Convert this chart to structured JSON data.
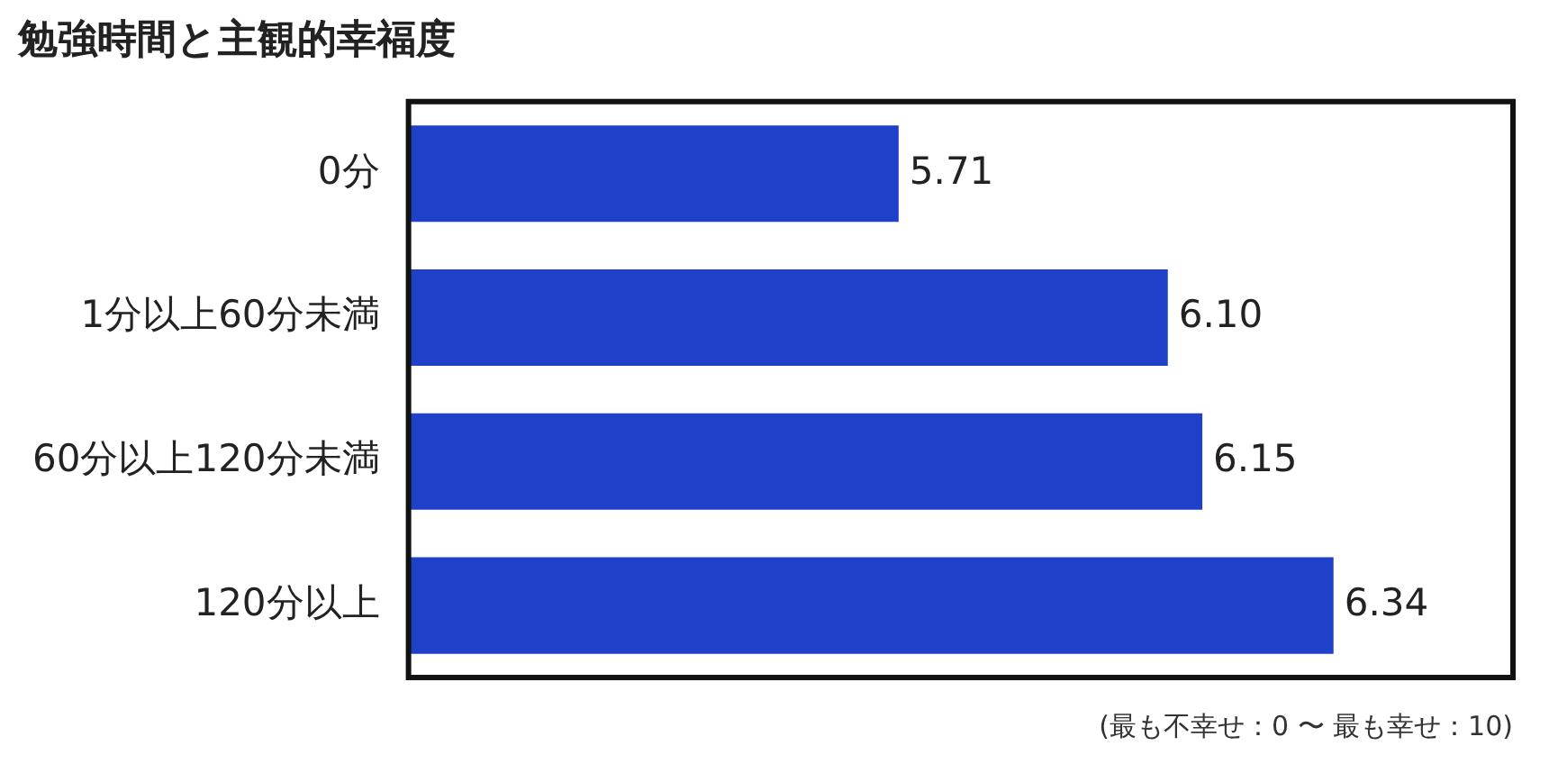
{
  "chart_data": {
    "type": "bar",
    "orientation": "horizontal",
    "title": "勉強時間と主観的幸福度",
    "categories": [
      "0分",
      "1分以上60分未満",
      "60分以上120分未満",
      "120分以上"
    ],
    "values": [
      5.71,
      6.1,
      6.15,
      6.34
    ],
    "value_labels": [
      "5.71",
      "6.10",
      "6.15",
      "6.34"
    ],
    "color": "#1f40c8",
    "xlim": [
      5,
      6.6
    ],
    "tick_labels": "y",
    "legend": false,
    "annotations": [
      "(最も不幸せ：0 〜 最も幸せ：10)"
    ]
  }
}
